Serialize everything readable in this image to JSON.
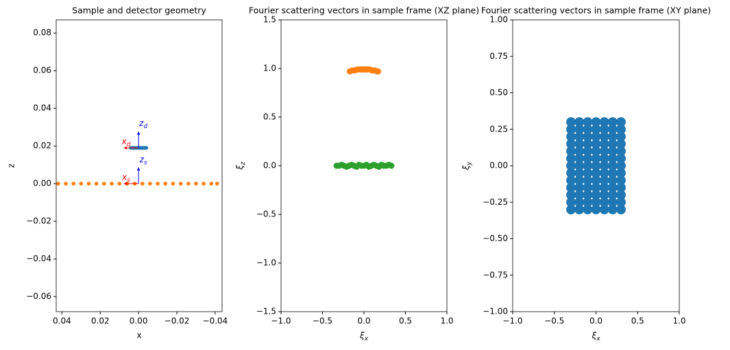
{
  "chart_data": [
    {
      "type": "scatter",
      "title": "Sample and detector geometry",
      "xlabel": "x",
      "ylabel": "z",
      "xlim": [
        0.043,
        -0.0436
      ],
      "ylim": [
        -0.068,
        0.087
      ],
      "xticks": [
        0.04,
        0.02,
        {
          "value": 0,
          "label": "0.00"
        },
        {
          "value": -0.02,
          "label": "−0.02"
        },
        {
          "value": -0.04,
          "label": "−0.04"
        }
      ],
      "yticks": [
        {
          "value": -0.06,
          "label": "−0.06"
        },
        {
          "value": -0.04,
          "label": "−0.04"
        },
        {
          "value": -0.02,
          "label": "−0.02"
        },
        {
          "value": 0,
          "label": "0.00"
        },
        0.02,
        0.04,
        0.06,
        0.08
      ],
      "series": [
        {
          "color": "#ff7f0e",
          "x": [
            0.042,
            0.038,
            0.034,
            0.03,
            0.026,
            0.022,
            0.018,
            0.014,
            0.01,
            0.006,
            0.002,
            -0.002,
            -0.006,
            -0.01,
            -0.014,
            -0.018,
            -0.022,
            -0.026,
            -0.03,
            -0.034,
            -0.038,
            -0.041
          ],
          "y": [
            0,
            0,
            0,
            0,
            0,
            0,
            0,
            0,
            0,
            0,
            0,
            0,
            0,
            0,
            0,
            0,
            0,
            0,
            0,
            0,
            0,
            0
          ]
        },
        {
          "color": "#1f77b4",
          "x": [
            0.004,
            0.003,
            0.002,
            0.001,
            0,
            -0.001,
            -0.002,
            -0.003,
            -0.004
          ],
          "y": [
            0.019,
            0.019,
            0.019,
            0.019,
            0.019,
            0.019,
            0.019,
            0.019,
            0.019
          ]
        }
      ],
      "arrows": [
        {
          "x": 0,
          "y": 0.019,
          "dx": 0.0077,
          "dy": 0,
          "color": "red"
        },
        {
          "x": 0,
          "y": 0.019,
          "dx": 0,
          "dy": 0.0086,
          "color": "blue"
        },
        {
          "x": 0,
          "y": 0,
          "dx": 0.0077,
          "dy": 0,
          "color": "red"
        },
        {
          "x": 0,
          "y": 0,
          "dx": 0,
          "dy": 0.0086,
          "color": "blue"
        }
      ],
      "annotations": [
        {
          "text": "x",
          "sub": "d",
          "x": 0.0065,
          "y": 0.0225,
          "color": "red"
        },
        {
          "text": "z",
          "sub": "d",
          "x": -0.0025,
          "y": 0.032,
          "color": "blue"
        },
        {
          "text": "x",
          "sub": "s",
          "x": 0.0065,
          "y": 0.0035,
          "color": "red"
        },
        {
          "text": "z",
          "sub": "s",
          "x": -0.0025,
          "y": 0.0128,
          "color": "blue"
        }
      ]
    },
    {
      "type": "scatter",
      "title": "Fourier scattering vectors in sample frame (XZ plane)",
      "xlabel": {
        "text": "ξ",
        "sub": "x"
      },
      "ylabel": {
        "text": "ξ",
        "sub": "z"
      },
      "xlim": [
        -1,
        1
      ],
      "ylim": [
        -1.5,
        1.5
      ],
      "xticks": [
        {
          "value": -1,
          "label": "−1.0"
        },
        {
          "value": -0.5,
          "label": "−0.5"
        },
        {
          "value": 0,
          "label": "0.0"
        },
        0.5,
        {
          "value": 1,
          "label": "1.0"
        }
      ],
      "yticks": [
        {
          "value": -1.5,
          "label": "−1.5"
        },
        {
          "value": -1,
          "label": "−1.0"
        },
        {
          "value": -0.5,
          "label": "−0.5"
        },
        {
          "value": 0,
          "label": "0.0"
        },
        0.5,
        {
          "value": 1,
          "label": "1.0"
        },
        1.5
      ],
      "series": [
        {
          "color": "#ff7f0e",
          "x": [
            -0.17,
            -0.14,
            -0.11,
            -0.08,
            -0.05,
            -0.02,
            0.01,
            0.04,
            0.07,
            0.1,
            0.13,
            0.16,
            0.17
          ],
          "y": [
            0.97,
            0.98,
            0.98,
            0.99,
            0.99,
            0.99,
            0.99,
            0.99,
            0.99,
            0.98,
            0.98,
            0.97,
            0.97
          ]
        },
        {
          "color": "#2ca02c",
          "x": [
            -0.33,
            -0.3,
            -0.27,
            -0.24,
            -0.21,
            -0.18,
            -0.15,
            -0.12,
            -0.09,
            -0.06,
            -0.03,
            0,
            0.03,
            0.06,
            0.09,
            0.12,
            0.15,
            0.18,
            0.21,
            0.24,
            0.27,
            0.3,
            0.33
          ],
          "y": [
            0,
            0,
            0.01,
            0,
            -0.01,
            0,
            0.01,
            0,
            -0.01,
            0.01,
            0,
            0,
            0.01,
            -0.01,
            0,
            0.01,
            0,
            -0.01,
            0.01,
            0,
            0,
            0.01,
            0
          ]
        }
      ]
    },
    {
      "type": "scatter",
      "title": "Fourier scattering vectors in sample frame (XY plane)",
      "xlabel": {
        "text": "ξ",
        "sub": "x"
      },
      "ylabel": {
        "text": "ξ",
        "sub": "y"
      },
      "xlim": [
        -1,
        1
      ],
      "ylim": [
        -1,
        1
      ],
      "xticks": [
        {
          "value": -1,
          "label": "−1.0"
        },
        {
          "value": -0.5,
          "label": "−0.5"
        },
        {
          "value": 0,
          "label": "0.0"
        },
        0.5,
        {
          "value": 1,
          "label": "1.0"
        }
      ],
      "yticks": [
        {
          "value": -1,
          "label": "−1.00"
        },
        {
          "value": -0.75,
          "label": "−0.75"
        },
        {
          "value": -0.5,
          "label": "−0.50"
        },
        {
          "value": -0.25,
          "label": "−0.25"
        },
        {
          "value": 0,
          "label": "0.00"
        },
        0.25,
        {
          "value": 0.5,
          "label": "0.50"
        },
        0.75,
        {
          "value": 1,
          "label": "1.00"
        }
      ],
      "series": [
        {
          "color": "#1f77b4",
          "x": [
            -0.3,
            -0.2,
            -0.1,
            0,
            0.1,
            0.2,
            0.3,
            -0.3,
            -0.2,
            -0.1,
            0,
            0.1,
            0.2,
            0.3,
            -0.3,
            -0.2,
            -0.1,
            0,
            0.1,
            0.2,
            0.3,
            -0.3,
            -0.2,
            -0.1,
            0,
            0.1,
            0.2,
            0.3,
            -0.3,
            -0.2,
            -0.1,
            0,
            0.1,
            0.2,
            0.3,
            -0.3,
            -0.2,
            -0.1,
            0,
            0.1,
            0.2,
            0.3,
            -0.3,
            -0.2,
            -0.1,
            0,
            0.1,
            0.2,
            0.3,
            -0.3,
            -0.2,
            -0.1,
            0,
            0.1,
            0.2,
            0.3,
            -0.3,
            -0.2,
            -0.1,
            0,
            0.1,
            0.2,
            0.3,
            -0.3,
            -0.2,
            -0.1,
            0,
            0.1,
            0.2,
            0.3,
            -0.3,
            -0.2,
            -0.1,
            0,
            0.1,
            0.2,
            0.3,
            -0.3,
            -0.2,
            -0.1,
            0,
            0.1,
            0.2,
            0.3,
            -0.3,
            -0.2,
            -0.1,
            0,
            0.1,
            0.2,
            0.3
          ],
          "y": [
            -0.3,
            -0.3,
            -0.3,
            -0.3,
            -0.3,
            -0.3,
            -0.3,
            -0.25,
            -0.25,
            -0.25,
            -0.25,
            -0.25,
            -0.25,
            -0.25,
            -0.2,
            -0.2,
            -0.2,
            -0.2,
            -0.2,
            -0.2,
            -0.2,
            -0.15,
            -0.15,
            -0.15,
            -0.15,
            -0.15,
            -0.15,
            -0.15,
            -0.1,
            -0.1,
            -0.1,
            -0.1,
            -0.1,
            -0.1,
            -0.1,
            -0.05,
            -0.05,
            -0.05,
            -0.05,
            -0.05,
            -0.05,
            -0.05,
            0,
            0,
            0,
            0,
            0,
            0,
            0,
            0.05,
            0.05,
            0.05,
            0.05,
            0.05,
            0.05,
            0.05,
            0.1,
            0.1,
            0.1,
            0.1,
            0.1,
            0.1,
            0.1,
            0.15,
            0.15,
            0.15,
            0.15,
            0.15,
            0.15,
            0.15,
            0.2,
            0.2,
            0.2,
            0.2,
            0.2,
            0.2,
            0.2,
            0.25,
            0.25,
            0.25,
            0.25,
            0.25,
            0.25,
            0.25,
            0.3,
            0.3,
            0.3,
            0.3,
            0.3,
            0.3,
            0.3
          ]
        }
      ]
    }
  ]
}
